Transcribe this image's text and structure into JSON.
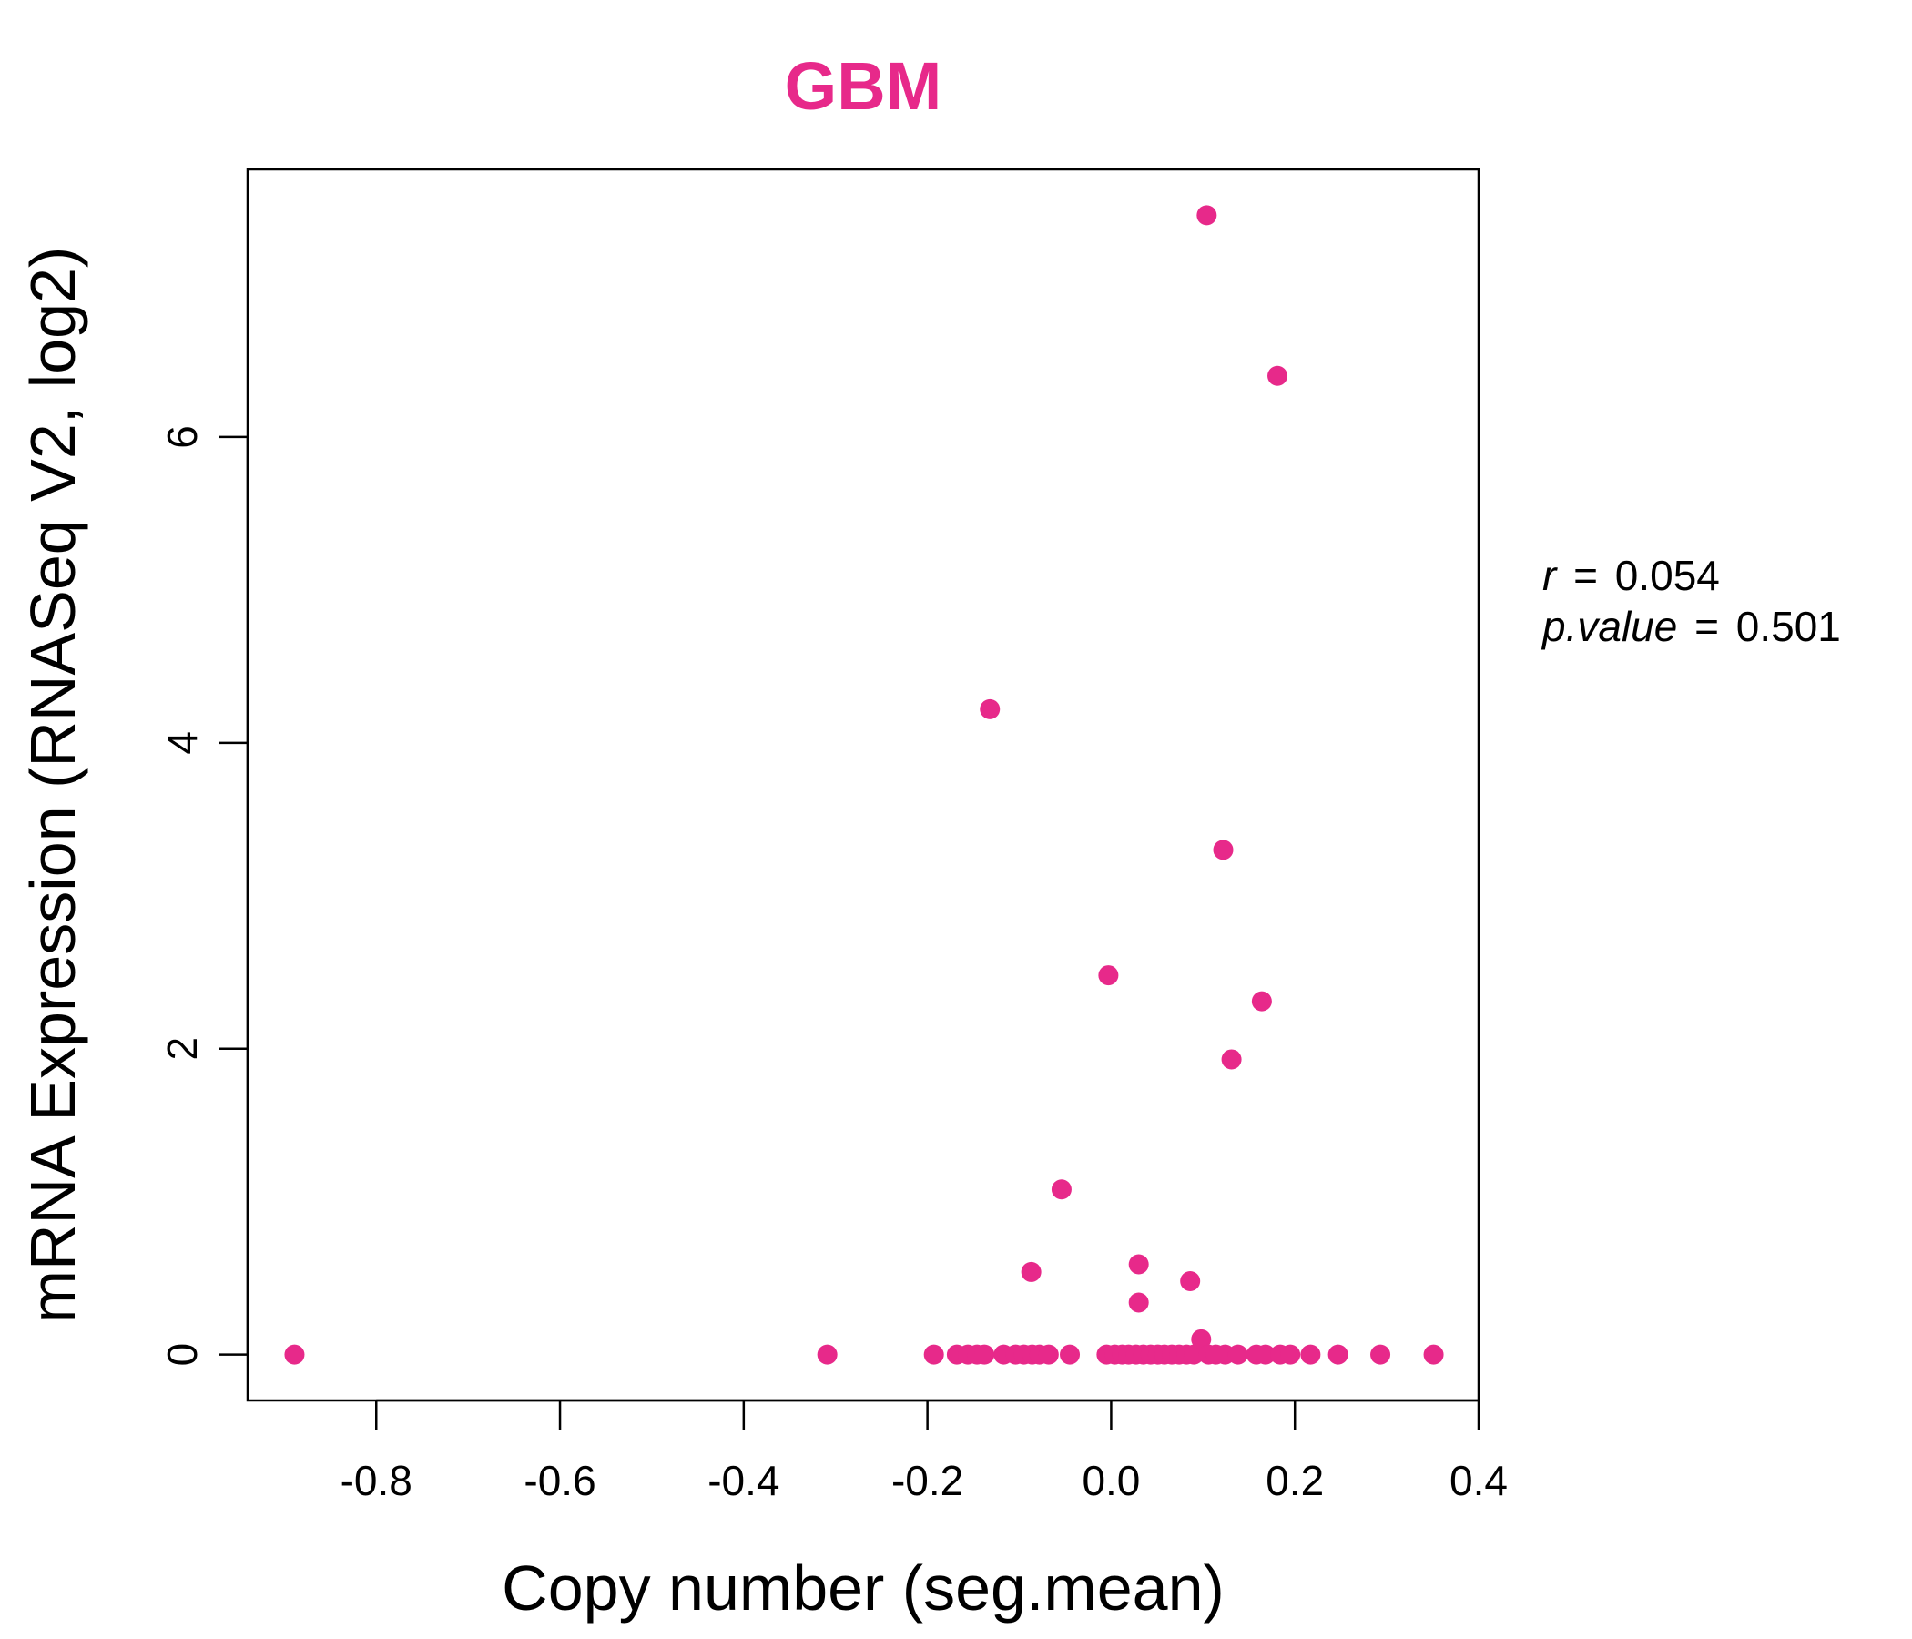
{
  "chart_data": {
    "type": "scatter",
    "title": "GBM",
    "xlabel": "Copy number (seg.mean)",
    "ylabel": "mRNA Expression (RNASeq V2, log2)",
    "xlim": [
      -0.94,
      0.4
    ],
    "ylim": [
      -0.3,
      7.75
    ],
    "xticks": [
      "-0.8",
      "-0.6",
      "-0.4",
      "-0.2",
      "0.0",
      "0.2",
      "0.4"
    ],
    "yticks": [
      "0",
      "2",
      "4",
      "6"
    ],
    "grid": false,
    "legend": "none",
    "colors": {
      "point": "#e7298a",
      "title": "#e7298a",
      "axis": "#000000"
    },
    "annotation": {
      "r_label": "r",
      "r_value": "0.054",
      "p_label": "p.value",
      "p_value": "0.501"
    },
    "points": [
      {
        "x": -0.889,
        "y": 0.0
      },
      {
        "x": -0.309,
        "y": 0.0
      },
      {
        "x": -0.193,
        "y": 0.0
      },
      {
        "x": -0.168,
        "y": 0.0
      },
      {
        "x": -0.156,
        "y": 0.0
      },
      {
        "x": -0.146,
        "y": 0.0
      },
      {
        "x": -0.138,
        "y": 0.0
      },
      {
        "x": -0.117,
        "y": 0.0
      },
      {
        "x": -0.104,
        "y": 0.0
      },
      {
        "x": -0.095,
        "y": 0.0
      },
      {
        "x": -0.086,
        "y": 0.0
      },
      {
        "x": -0.078,
        "y": 0.0
      },
      {
        "x": -0.068,
        "y": 0.0
      },
      {
        "x": -0.045,
        "y": 0.0
      },
      {
        "x": -0.132,
        "y": 4.22
      },
      {
        "x": -0.087,
        "y": 0.54
      },
      {
        "x": -0.054,
        "y": 1.08
      },
      {
        "x": -0.003,
        "y": 2.48
      },
      {
        "x": -0.005,
        "y": 0.0
      },
      {
        "x": 0.004,
        "y": 0.0
      },
      {
        "x": 0.012,
        "y": 0.0
      },
      {
        "x": 0.019,
        "y": 0.0
      },
      {
        "x": 0.027,
        "y": 0.0
      },
      {
        "x": 0.03,
        "y": 0.59
      },
      {
        "x": 0.03,
        "y": 0.34
      },
      {
        "x": 0.035,
        "y": 0.0
      },
      {
        "x": 0.043,
        "y": 0.0
      },
      {
        "x": 0.051,
        "y": 0.0
      },
      {
        "x": 0.058,
        "y": 0.0
      },
      {
        "x": 0.066,
        "y": 0.0
      },
      {
        "x": 0.074,
        "y": 0.0
      },
      {
        "x": 0.082,
        "y": 0.0
      },
      {
        "x": 0.086,
        "y": 0.48
      },
      {
        "x": 0.09,
        "y": 0.0
      },
      {
        "x": 0.098,
        "y": 0.1
      },
      {
        "x": 0.104,
        "y": 7.45
      },
      {
        "x": 0.106,
        "y": 0.0
      },
      {
        "x": 0.114,
        "y": 0.0
      },
      {
        "x": 0.122,
        "y": 3.3
      },
      {
        "x": 0.124,
        "y": 0.0
      },
      {
        "x": 0.131,
        "y": 1.93
      },
      {
        "x": 0.138,
        "y": 0.0
      },
      {
        "x": 0.158,
        "y": 0.0
      },
      {
        "x": 0.164,
        "y": 2.31
      },
      {
        "x": 0.168,
        "y": 0.0
      },
      {
        "x": 0.181,
        "y": 6.4
      },
      {
        "x": 0.184,
        "y": 0.0
      },
      {
        "x": 0.195,
        "y": 0.0
      },
      {
        "x": 0.217,
        "y": 0.0
      },
      {
        "x": 0.247,
        "y": 0.0
      },
      {
        "x": 0.293,
        "y": 0.0
      },
      {
        "x": 0.351,
        "y": 0.0
      }
    ]
  }
}
